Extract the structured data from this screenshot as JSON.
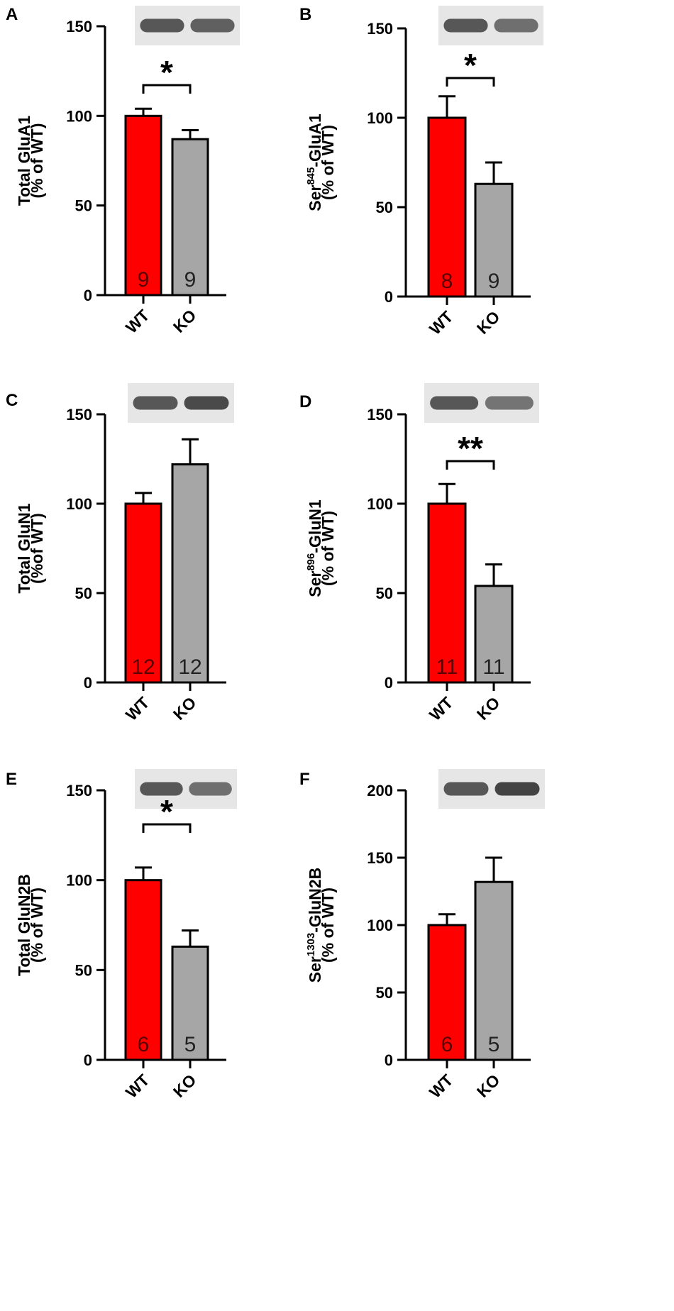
{
  "panel_letters": [
    "A",
    "B",
    "C",
    "D",
    "E",
    "F"
  ],
  "colors": {
    "wt": "#ff0000",
    "ko": "#a6a6a6",
    "axis": "#000000",
    "count_wt": "#5a0000",
    "count_ko": "#222222"
  },
  "chart_data": [
    {
      "type": "bar",
      "panel": "A",
      "ylabel": [
        "Total GluA1",
        "(% of WT)"
      ],
      "categories": [
        "WT",
        "KO"
      ],
      "values": [
        100,
        87
      ],
      "errors": [
        4,
        5
      ],
      "counts": [
        "9",
        "9"
      ],
      "ylim": [
        0,
        150
      ],
      "yticks": [
        "0",
        "50",
        "100",
        "150"
      ],
      "significance": "*",
      "blot": "Total GluA1 western blot bands, WT and KO lanes"
    },
    {
      "type": "bar",
      "panel": "B",
      "ylabel": [
        "Ser",
        "845",
        "-GluA1",
        "(% of WT)"
      ],
      "categories": [
        "WT",
        "KO"
      ],
      "values": [
        100,
        63
      ],
      "errors": [
        12,
        12
      ],
      "counts": [
        "8",
        "9"
      ],
      "ylim": [
        0,
        150
      ],
      "yticks": [
        "0",
        "50",
        "100",
        "150"
      ],
      "significance": "*",
      "blot": "Ser845-GluA1 western blot bands, WT and KO lanes"
    },
    {
      "type": "bar",
      "panel": "C",
      "ylabel": [
        "Total GluN1",
        "(%of WT)"
      ],
      "categories": [
        "WT",
        "KO"
      ],
      "values": [
        100,
        122
      ],
      "errors": [
        6,
        14
      ],
      "counts": [
        "12",
        "12"
      ],
      "ylim": [
        0,
        150
      ],
      "yticks": [
        "0",
        "50",
        "100",
        "150"
      ],
      "significance": "",
      "blot": "Total GluN1 western blot bands, WT and KO lanes"
    },
    {
      "type": "bar",
      "panel": "D",
      "ylabel": [
        "Ser",
        "896",
        "-GluN1",
        "(% of WT)"
      ],
      "categories": [
        "WT",
        "KO"
      ],
      "values": [
        100,
        54
      ],
      "errors": [
        11,
        12
      ],
      "counts": [
        "11",
        "11"
      ],
      "ylim": [
        0,
        150
      ],
      "yticks": [
        "0",
        "50",
        "100",
        "150"
      ],
      "significance": "**",
      "blot": "Ser896-GluN1 western blot bands, WT and KO lanes"
    },
    {
      "type": "bar",
      "panel": "E",
      "ylabel": [
        "Total GluN2B",
        "(% of WT)"
      ],
      "categories": [
        "WT",
        "KO"
      ],
      "values": [
        100,
        63
      ],
      "errors": [
        7,
        9
      ],
      "counts": [
        "6",
        "5"
      ],
      "ylim": [
        0,
        150
      ],
      "yticks": [
        "0",
        "50",
        "100",
        "150"
      ],
      "significance": "*",
      "blot": "Total GluN2B western blot bands, WT and KO lanes"
    },
    {
      "type": "bar",
      "panel": "F",
      "ylabel": [
        "Ser",
        "1303",
        "-GluN2B",
        "(% of WT)"
      ],
      "categories": [
        "WT",
        "KO"
      ],
      "values": [
        100,
        132
      ],
      "errors": [
        8,
        18
      ],
      "counts": [
        "6",
        "5"
      ],
      "ylim": [
        0,
        200
      ],
      "yticks": [
        "0",
        "50",
        "100",
        "150",
        "200"
      ],
      "significance": "",
      "blot": "Ser1303-GluN2B western blot bands, WT and KO lanes"
    }
  ]
}
